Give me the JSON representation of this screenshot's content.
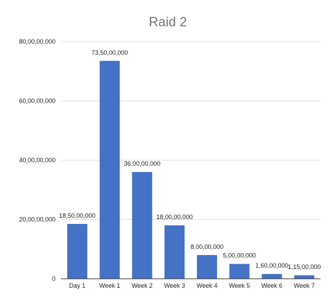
{
  "chart_data": {
    "type": "bar",
    "title": "Raid 2",
    "xlabel": "",
    "ylabel": "",
    "categories": [
      "Day 1",
      "Week 1",
      "Week 2",
      "Week 3",
      "Week 4",
      "Week 5",
      "Week 6",
      "Week 7"
    ],
    "values": [
      185000000,
      735000000,
      360000000,
      180000000,
      80000000,
      50000000,
      16000000,
      11500000
    ],
    "data_labels": [
      "18,50,00,000",
      "73,50,00,000",
      "36,00,00,000",
      "18,00,00,000",
      "8,00,00,000",
      "5,00,00,000",
      "1,60,00,000",
      "1,15,00,000"
    ],
    "ylim": [
      0,
      800000000
    ],
    "yticks": [
      0,
      200000000,
      400000000,
      600000000,
      800000000
    ],
    "ytick_labels": [
      "0",
      "20,00,00,000",
      "40,00,00,000",
      "60,00,00,000",
      "80,00,00,000"
    ],
    "grid": true,
    "legend": "none",
    "bar_color": "#4472c4"
  }
}
